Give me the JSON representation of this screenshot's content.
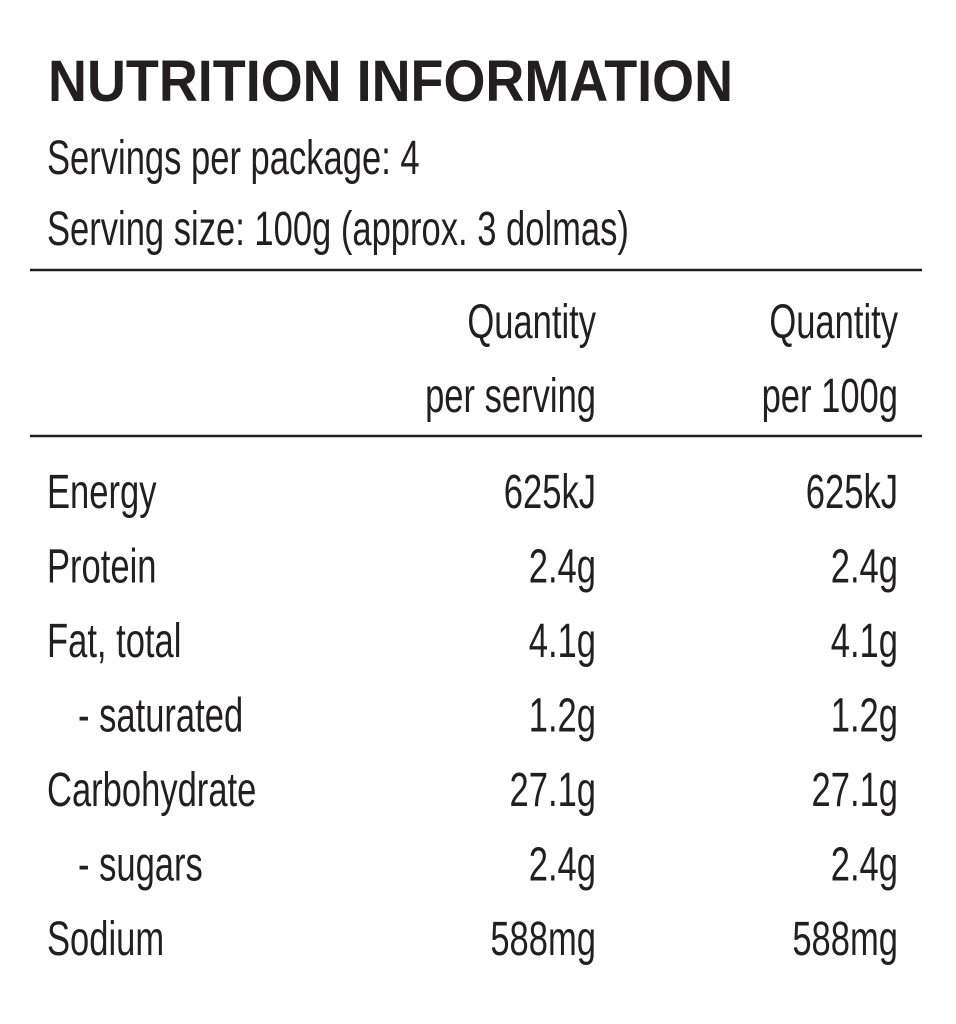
{
  "header": {
    "title": "NUTRITION INFORMATION",
    "servings_per_package": "Servings per package: 4",
    "serving_size": "Serving size: 100g (approx. 3 dolmas)"
  },
  "table": {
    "columns": [
      [
        "Quantity",
        "per serving"
      ],
      [
        "Quantity",
        "per 100g"
      ]
    ],
    "rows": [
      [
        "Energy",
        "625kJ",
        "625kJ"
      ],
      [
        "Protein",
        "2.4g",
        "2.4g"
      ],
      [
        "Fat, total",
        "4.1g",
        "4.1g"
      ],
      [
        "- saturated",
        "1.2g",
        "1.2g"
      ],
      [
        "Carbohydrate",
        "27.1g",
        "27.1g"
      ],
      [
        "- sugars",
        "2.4g",
        "2.4g"
      ],
      [
        "Sodium",
        "588mg",
        "588mg"
      ]
    ]
  }
}
